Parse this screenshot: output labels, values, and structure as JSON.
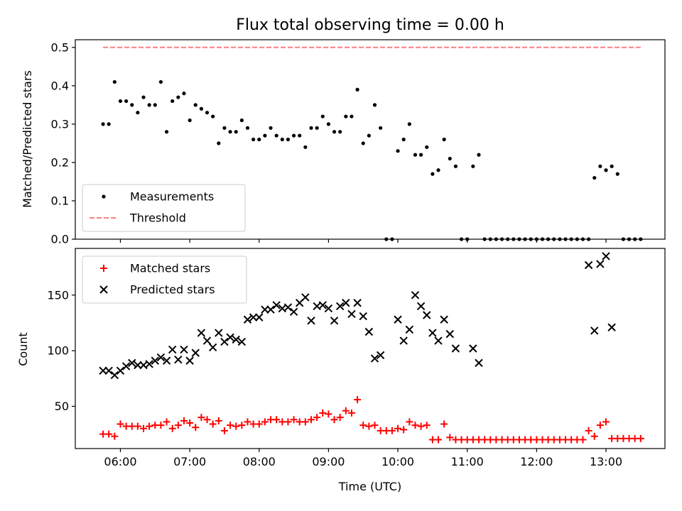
{
  "chart_data": [
    {
      "type": "scatter",
      "title": "Flux total observing time = 0.00 h",
      "xlabel": "",
      "ylabel": "Matched/Predicted stars",
      "xlim": [
        "05:21",
        "13:51"
      ],
      "ylim": [
        0,
        0.52
      ],
      "yticks": [
        0.0,
        0.1,
        0.2,
        0.3,
        0.4,
        0.5
      ],
      "ytick_labels": [
        "0.0",
        "0.1",
        "0.2",
        "0.3",
        "0.4",
        "0.5"
      ],
      "legend": {
        "position": "lower-left",
        "entries": [
          "Measurements",
          "Threshold"
        ]
      },
      "series": [
        {
          "name": "Measurements",
          "marker": "dot",
          "color": "#000000",
          "x": [
            "05:45",
            "05:50",
            "05:55",
            "06:00",
            "06:05",
            "06:10",
            "06:15",
            "06:20",
            "06:25",
            "06:30",
            "06:35",
            "06:40",
            "06:45",
            "06:50",
            "06:55",
            "07:00",
            "07:05",
            "07:10",
            "07:15",
            "07:20",
            "07:25",
            "07:30",
            "07:35",
            "07:40",
            "07:45",
            "07:50",
            "07:55",
            "08:00",
            "08:05",
            "08:10",
            "08:15",
            "08:20",
            "08:25",
            "08:30",
            "08:35",
            "08:40",
            "08:45",
            "08:50",
            "08:55",
            "09:00",
            "09:05",
            "09:10",
            "09:15",
            "09:20",
            "09:25",
            "09:30",
            "09:35",
            "09:40",
            "09:45",
            "09:50",
            "09:55",
            "10:00",
            "10:05",
            "10:10",
            "10:15",
            "10:20",
            "10:25",
            "10:30",
            "10:35",
            "10:40",
            "10:45",
            "10:50",
            "10:55",
            "11:00",
            "11:05",
            "11:10",
            "11:15",
            "11:20",
            "11:25",
            "11:30",
            "11:35",
            "11:40",
            "11:45",
            "11:50",
            "11:55",
            "12:00",
            "12:05",
            "12:10",
            "12:15",
            "12:20",
            "12:25",
            "12:30",
            "12:35",
            "12:40",
            "12:45",
            "12:50",
            "12:55",
            "13:00",
            "13:05",
            "13:10",
            "13:15",
            "13:20",
            "13:25",
            "13:30"
          ],
          "y": [
            0.3,
            0.3,
            0.41,
            0.36,
            0.36,
            0.35,
            0.33,
            0.37,
            0.35,
            0.35,
            0.41,
            0.28,
            0.36,
            0.37,
            0.38,
            0.31,
            0.35,
            0.34,
            0.33,
            0.32,
            0.25,
            0.29,
            0.28,
            0.28,
            0.31,
            0.29,
            0.26,
            0.26,
            0.27,
            0.29,
            0.27,
            0.26,
            0.26,
            0.27,
            0.27,
            0.24,
            0.29,
            0.29,
            0.32,
            0.3,
            0.28,
            0.28,
            0.32,
            0.32,
            0.39,
            0.25,
            0.27,
            0.35,
            0.29,
            0.0,
            0.0,
            0.23,
            0.26,
            0.3,
            0.22,
            0.22,
            0.24,
            0.17,
            0.18,
            0.26,
            0.21,
            0.19,
            0.0,
            0.0,
            0.19,
            0.22,
            0.0,
            0.0,
            0.0,
            0.0,
            0.0,
            0.0,
            0.0,
            0.0,
            0.0,
            0.0,
            0.0,
            0.0,
            0.0,
            0.0,
            0.0,
            0.0,
            0.0,
            0.0,
            0.0,
            0.16,
            0.19,
            0.18,
            0.19,
            0.17,
            0.0,
            0.0,
            0.0,
            0.0
          ]
        },
        {
          "name": "Threshold",
          "marker": "dashed-line",
          "color": "#ff7f7f",
          "x": [
            "05:45",
            "13:30"
          ],
          "y": [
            0.5,
            0.5
          ]
        }
      ]
    },
    {
      "type": "scatter",
      "title": "",
      "xlabel": "Time (UTC)",
      "ylabel": "Count",
      "xlim": [
        "05:21",
        "13:51"
      ],
      "ylim": [
        12,
        192
      ],
      "yticks": [
        50,
        100,
        150
      ],
      "ytick_labels": [
        "50",
        "100",
        "150"
      ],
      "xtick_labels": [
        "06:00",
        "07:00",
        "08:00",
        "09:00",
        "10:00",
        "11:00",
        "12:00",
        "13:00"
      ],
      "legend": {
        "position": "upper-left",
        "entries": [
          "Matched stars",
          "Predicted stars"
        ]
      },
      "series": [
        {
          "name": "Matched stars",
          "marker": "plus",
          "color": "#ff0000",
          "x": [
            "05:45",
            "05:50",
            "05:55",
            "06:00",
            "06:05",
            "06:10",
            "06:15",
            "06:20",
            "06:25",
            "06:30",
            "06:35",
            "06:40",
            "06:45",
            "06:50",
            "06:55",
            "07:00",
            "07:05",
            "07:10",
            "07:15",
            "07:20",
            "07:25",
            "07:30",
            "07:35",
            "07:40",
            "07:45",
            "07:50",
            "07:55",
            "08:00",
            "08:05",
            "08:10",
            "08:15",
            "08:20",
            "08:25",
            "08:30",
            "08:35",
            "08:40",
            "08:45",
            "08:50",
            "08:55",
            "09:00",
            "09:05",
            "09:10",
            "09:15",
            "09:20",
            "09:25",
            "09:30",
            "09:35",
            "09:40",
            "09:45",
            "09:50",
            "09:55",
            "10:00",
            "10:05",
            "10:10",
            "10:15",
            "10:20",
            "10:25",
            "10:30",
            "10:35",
            "10:40",
            "10:45",
            "10:50",
            "10:55",
            "11:00",
            "11:05",
            "11:10",
            "11:15",
            "11:20",
            "11:25",
            "11:30",
            "11:35",
            "11:40",
            "11:45",
            "11:50",
            "11:55",
            "12:00",
            "12:05",
            "12:10",
            "12:15",
            "12:20",
            "12:25",
            "12:30",
            "12:35",
            "12:40",
            "12:45",
            "12:50",
            "12:55",
            "13:00",
            "13:05",
            "13:10",
            "13:15",
            "13:20",
            "13:25",
            "13:30"
          ],
          "y": [
            25,
            25,
            23,
            34,
            32,
            32,
            32,
            30,
            32,
            33,
            33,
            36,
            30,
            33,
            37,
            35,
            31,
            40,
            38,
            34,
            37,
            28,
            33,
            32,
            33,
            36,
            34,
            34,
            36,
            38,
            38,
            36,
            36,
            38,
            36,
            36,
            38,
            40,
            44,
            43,
            38,
            40,
            46,
            44,
            56,
            33,
            32,
            33,
            28,
            28,
            28,
            30,
            29,
            36,
            33,
            32,
            33,
            20,
            20,
            34,
            22,
            20,
            20,
            20,
            20,
            20,
            20,
            20,
            20,
            20,
            20,
            20,
            20,
            20,
            20,
            20,
            20,
            20,
            20,
            20,
            20,
            20,
            20,
            20,
            28,
            23,
            33,
            36,
            21,
            21,
            21,
            21,
            21,
            21
          ]
        },
        {
          "name": "Predicted stars",
          "marker": "x",
          "color": "#000000",
          "x": [
            "05:45",
            "05:50",
            "05:55",
            "06:00",
            "06:05",
            "06:10",
            "06:15",
            "06:20",
            "06:25",
            "06:30",
            "06:35",
            "06:40",
            "06:45",
            "06:50",
            "06:55",
            "07:00",
            "07:05",
            "07:10",
            "07:15",
            "07:20",
            "07:25",
            "07:30",
            "07:35",
            "07:40",
            "07:45",
            "07:50",
            "07:55",
            "08:00",
            "08:05",
            "08:10",
            "08:15",
            "08:20",
            "08:25",
            "08:30",
            "08:35",
            "08:40",
            "08:45",
            "08:50",
            "08:55",
            "09:00",
            "09:05",
            "09:10",
            "09:15",
            "09:20",
            "09:25",
            "09:30",
            "09:35",
            "09:40",
            "09:45",
            "09:50",
            "09:55",
            "10:00",
            "10:05",
            "10:10",
            "10:15",
            "10:20",
            "10:25",
            "10:30",
            "10:35",
            "10:40",
            "10:45",
            "10:50",
            "10:55",
            "11:00",
            "11:05",
            "11:10",
            "11:15",
            "11:20",
            "11:25",
            "11:30",
            "11:35",
            "11:40",
            "11:45",
            "11:50",
            "11:55",
            "12:00",
            "12:05",
            "12:10",
            "12:15",
            "12:20",
            "12:25",
            "12:30",
            "12:35",
            "12:40",
            "12:45",
            "12:50",
            "12:55",
            "13:00",
            "13:05",
            "13:10",
            "13:15",
            "13:20",
            "13:25",
            "13:30"
          ],
          "y": [
            82,
            82,
            78,
            82,
            86,
            89,
            87,
            87,
            88,
            91,
            94,
            91,
            101,
            92,
            101,
            91,
            98,
            116,
            109,
            103,
            116,
            108,
            112,
            110,
            108,
            128,
            130,
            130,
            137,
            137,
            141,
            138,
            139,
            135,
            143,
            148,
            127,
            140,
            141,
            138,
            127,
            140,
            143,
            133,
            143,
            131,
            117,
            93,
            96,
            null,
            null,
            128,
            109,
            119,
            150,
            140,
            132,
            116,
            109,
            128,
            115,
            102,
            null,
            null,
            102,
            89,
            null,
            null,
            null,
            null,
            null,
            null,
            null,
            null,
            null,
            null,
            null,
            null,
            null,
            null,
            null,
            null,
            null,
            null,
            177,
            118,
            178,
            185,
            121,
            null,
            null,
            null,
            null,
            null
          ]
        }
      ]
    }
  ]
}
